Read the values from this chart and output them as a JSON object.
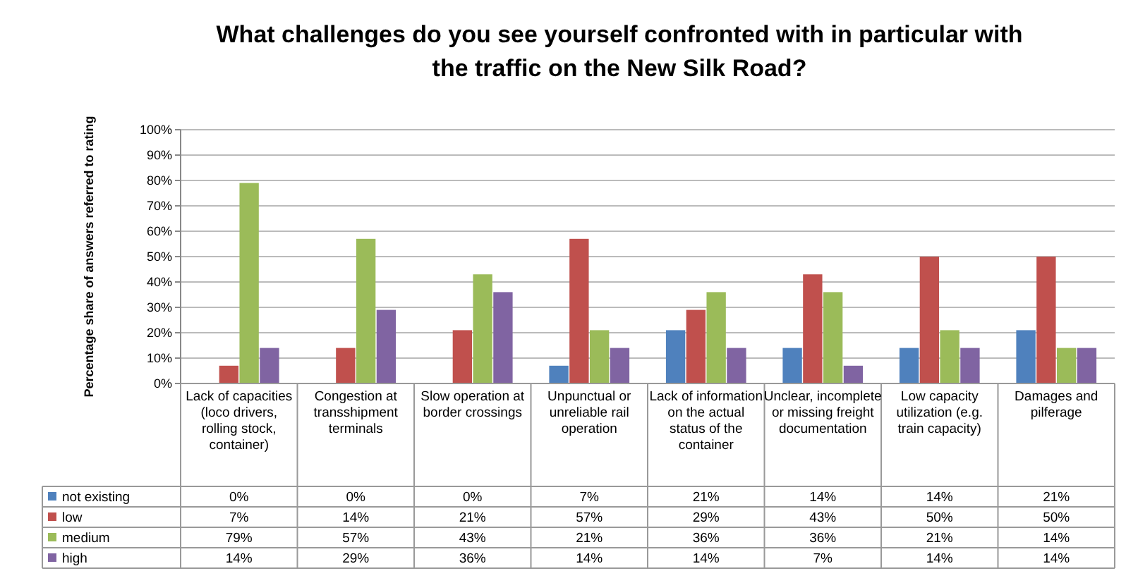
{
  "chart_data": {
    "type": "bar",
    "title": "What challenges do you see yourself confronted with in particular with the traffic on the New Silk Road?",
    "ylabel": "Percentage share of answers referred to rating",
    "categories": [
      "Lack of capacities (loco drivers, rolling stock, container)",
      "Congestion at transshipment terminals",
      "Slow operation at border crossings",
      "Unpunctual or unreliable rail operation",
      "Lack of information on the actual status of the container",
      "Unclear, incomplete or missing freight documentation",
      "Low capacity utilization (e.g. train capacity)",
      "Damages and pilferage"
    ],
    "series": [
      {
        "name": "not existing",
        "color": "#4f81bd",
        "values": [
          0,
          0,
          0,
          7,
          21,
          14,
          14,
          21
        ],
        "value_labels": [
          "0%",
          "0%",
          "0%",
          "7%",
          "21%",
          "14%",
          "14%",
          "21%"
        ]
      },
      {
        "name": "low",
        "color": "#c0504d",
        "values": [
          7,
          14,
          21,
          57,
          29,
          43,
          50,
          50
        ],
        "value_labels": [
          "7%",
          "14%",
          "21%",
          "57%",
          "29%",
          "43%",
          "50%",
          "50%"
        ]
      },
      {
        "name": "medium",
        "color": "#9bbb59",
        "values": [
          79,
          57,
          43,
          21,
          36,
          36,
          21,
          14
        ],
        "value_labels": [
          "79%",
          "57%",
          "43%",
          "21%",
          "36%",
          "36%",
          "21%",
          "14%"
        ]
      },
      {
        "name": "high",
        "color": "#8064a2",
        "values": [
          14,
          29,
          36,
          14,
          14,
          7,
          14,
          14
        ],
        "value_labels": [
          "14%",
          "29%",
          "36%",
          "14%",
          "14%",
          "7%",
          "14%",
          "14%"
        ]
      }
    ],
    "ylim": [
      0,
      100
    ],
    "yticks": [
      {
        "value": 0,
        "label": "0%"
      },
      {
        "value": 10,
        "label": "10%"
      },
      {
        "value": 20,
        "label": "20%"
      },
      {
        "value": 30,
        "label": "30%"
      },
      {
        "value": 40,
        "label": "40%"
      },
      {
        "value": 50,
        "label": "50%"
      },
      {
        "value": 60,
        "label": "60%"
      },
      {
        "value": 70,
        "label": "70%"
      },
      {
        "value": 80,
        "label": "80%"
      },
      {
        "value": 90,
        "label": "90%"
      },
      {
        "value": 100,
        "label": "100%"
      }
    ],
    "grid": "y",
    "legend": "bottom"
  }
}
